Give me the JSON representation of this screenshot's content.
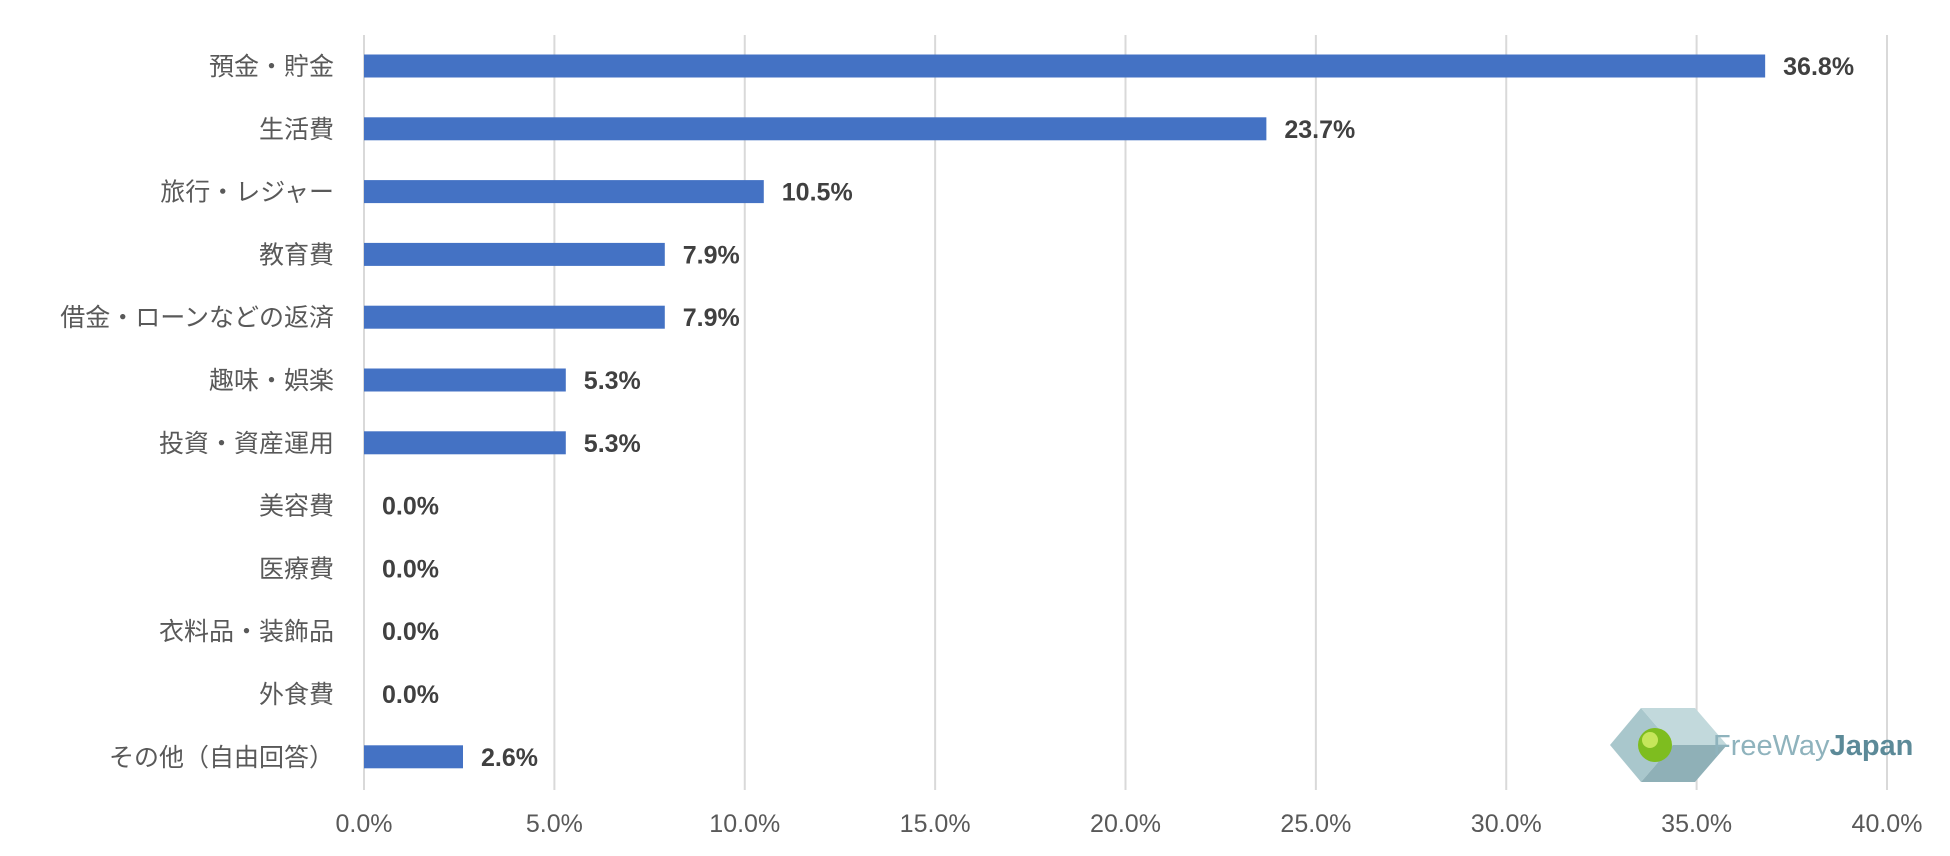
{
  "chart_data": {
    "type": "bar",
    "orientation": "horizontal",
    "categories": [
      "預金・貯金",
      "生活費",
      "旅行・レジャー",
      "教育費",
      "借金・ローンなどの返済",
      "趣味・娯楽",
      "投資・資産運用",
      "美容費",
      "医療費",
      "衣料品・装飾品",
      "外食費",
      "その他（自由回答）"
    ],
    "values": [
      36.8,
      23.7,
      10.5,
      7.9,
      7.9,
      5.3,
      5.3,
      0.0,
      0.0,
      0.0,
      0.0,
      2.6
    ],
    "value_labels": [
      "36.8%",
      "23.7%",
      "10.5%",
      "7.9%",
      "7.9%",
      "5.3%",
      "5.3%",
      "0.0%",
      "0.0%",
      "0.0%",
      "0.0%",
      "2.6%"
    ],
    "xlim": [
      0,
      40
    ],
    "xticks": [
      0,
      5,
      10,
      15,
      20,
      25,
      30,
      35,
      40
    ],
    "xtick_labels": [
      "0.0%",
      "5.0%",
      "10.0%",
      "15.0%",
      "20.0%",
      "25.0%",
      "30.0%",
      "35.0%",
      "40.0%"
    ],
    "grid": "vertical",
    "bar_color": "#4472c4",
    "title": "",
    "xlabel": "",
    "ylabel": ""
  },
  "watermark": {
    "text_light": "FreeWay",
    "text_dark": "Japan"
  }
}
